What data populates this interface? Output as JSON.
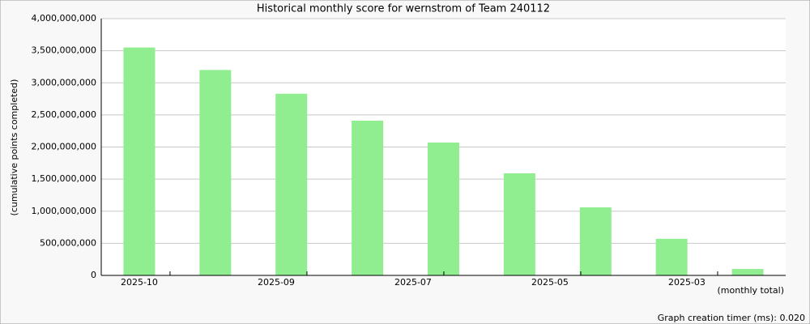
{
  "chart_data": {
    "type": "bar",
    "title": "Historical monthly score for wernstrom of Team 240112",
    "y_label": "(cumulative points completed)",
    "x_label": "(monthly total)",
    "footnote": "Graph creation timer (ms): 0.020",
    "categories": [
      "2025-10",
      null,
      "2025-09",
      null,
      "2025-07",
      null,
      "2025-05",
      null,
      "2025-03"
    ],
    "values": [
      3550000000,
      3200000000,
      2830000000,
      2410000000,
      2070000000,
      1590000000,
      1060000000,
      570000000,
      100000000
    ],
    "color": "#90ee90",
    "ylim": [
      0,
      4000000000
    ],
    "yticks": [
      0,
      {
        "value": 500000000,
        "label": "500,000,000"
      },
      {
        "value": 1000000000,
        "label": "1,000,000,000"
      },
      {
        "value": 1500000000,
        "label": "1,500,000,000"
      },
      {
        "value": 2000000000,
        "label": "2,000,000,000"
      },
      {
        "value": 2500000000,
        "label": "2,500,000,000"
      },
      {
        "value": 3000000000,
        "label": "3,000,000,000"
      },
      {
        "value": 3500000000,
        "label": "3,500,000,000"
      },
      {
        "value": 4000000000,
        "label": "4,000,000,000"
      }
    ],
    "grid": true
  }
}
